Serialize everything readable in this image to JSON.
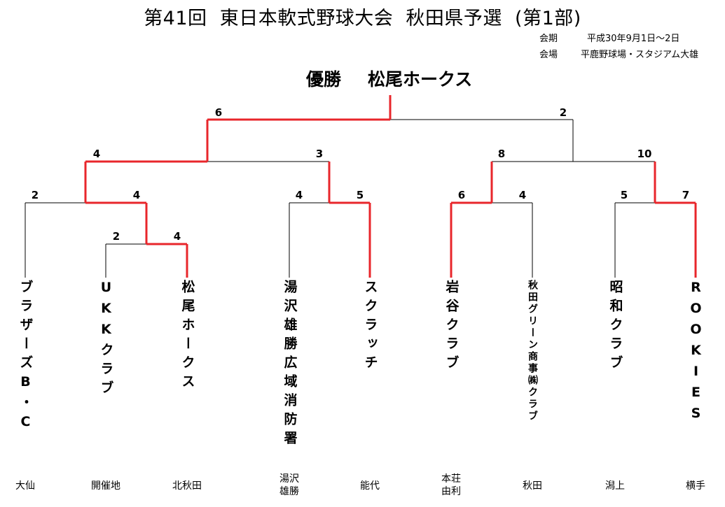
{
  "title": "第41回  東日本軟式野球大会  秋田県予選  (第1部)",
  "info": {
    "period_label": "会期",
    "period_value": "平成30年9月1日～2日",
    "venue_label": "会場",
    "venue_value": "平鹿野球場・スタジアム大雄"
  },
  "winner": {
    "label": "優勝",
    "team": "松尾ホークス"
  },
  "teams": [
    {
      "name": "ブラザーズB・C",
      "region": "大仙"
    },
    {
      "name": "UKKクラブ",
      "region": "開催地"
    },
    {
      "name": "松尾ホークス",
      "region": "北秋田"
    },
    {
      "name": "湯沢雄勝広域消防署",
      "region": "湯沢\n雄勝"
    },
    {
      "name": "スクラッチ",
      "region": "能代"
    },
    {
      "name": "岩谷クラブ",
      "region": "本荘\n由利"
    },
    {
      "name": "秋田グリーン商事㈱クラブ",
      "region": "秋田"
    },
    {
      "name": "昭和クラブ",
      "region": "潟上"
    },
    {
      "name": "ROOKIES",
      "region": "横手"
    }
  ],
  "scores": {
    "final": [
      "6",
      "2"
    ],
    "semi_left": [
      "4",
      "3"
    ],
    "semi_right": [
      "8",
      "10"
    ],
    "qf1": [
      "2",
      "4"
    ],
    "qf2": [
      "4",
      "5"
    ],
    "qf3": [
      "6",
      "4"
    ],
    "qf4": [
      "5",
      "7"
    ],
    "r1": [
      "2",
      "4"
    ]
  },
  "colors": {
    "winner_path": "#e8262b",
    "line": "#000000"
  }
}
